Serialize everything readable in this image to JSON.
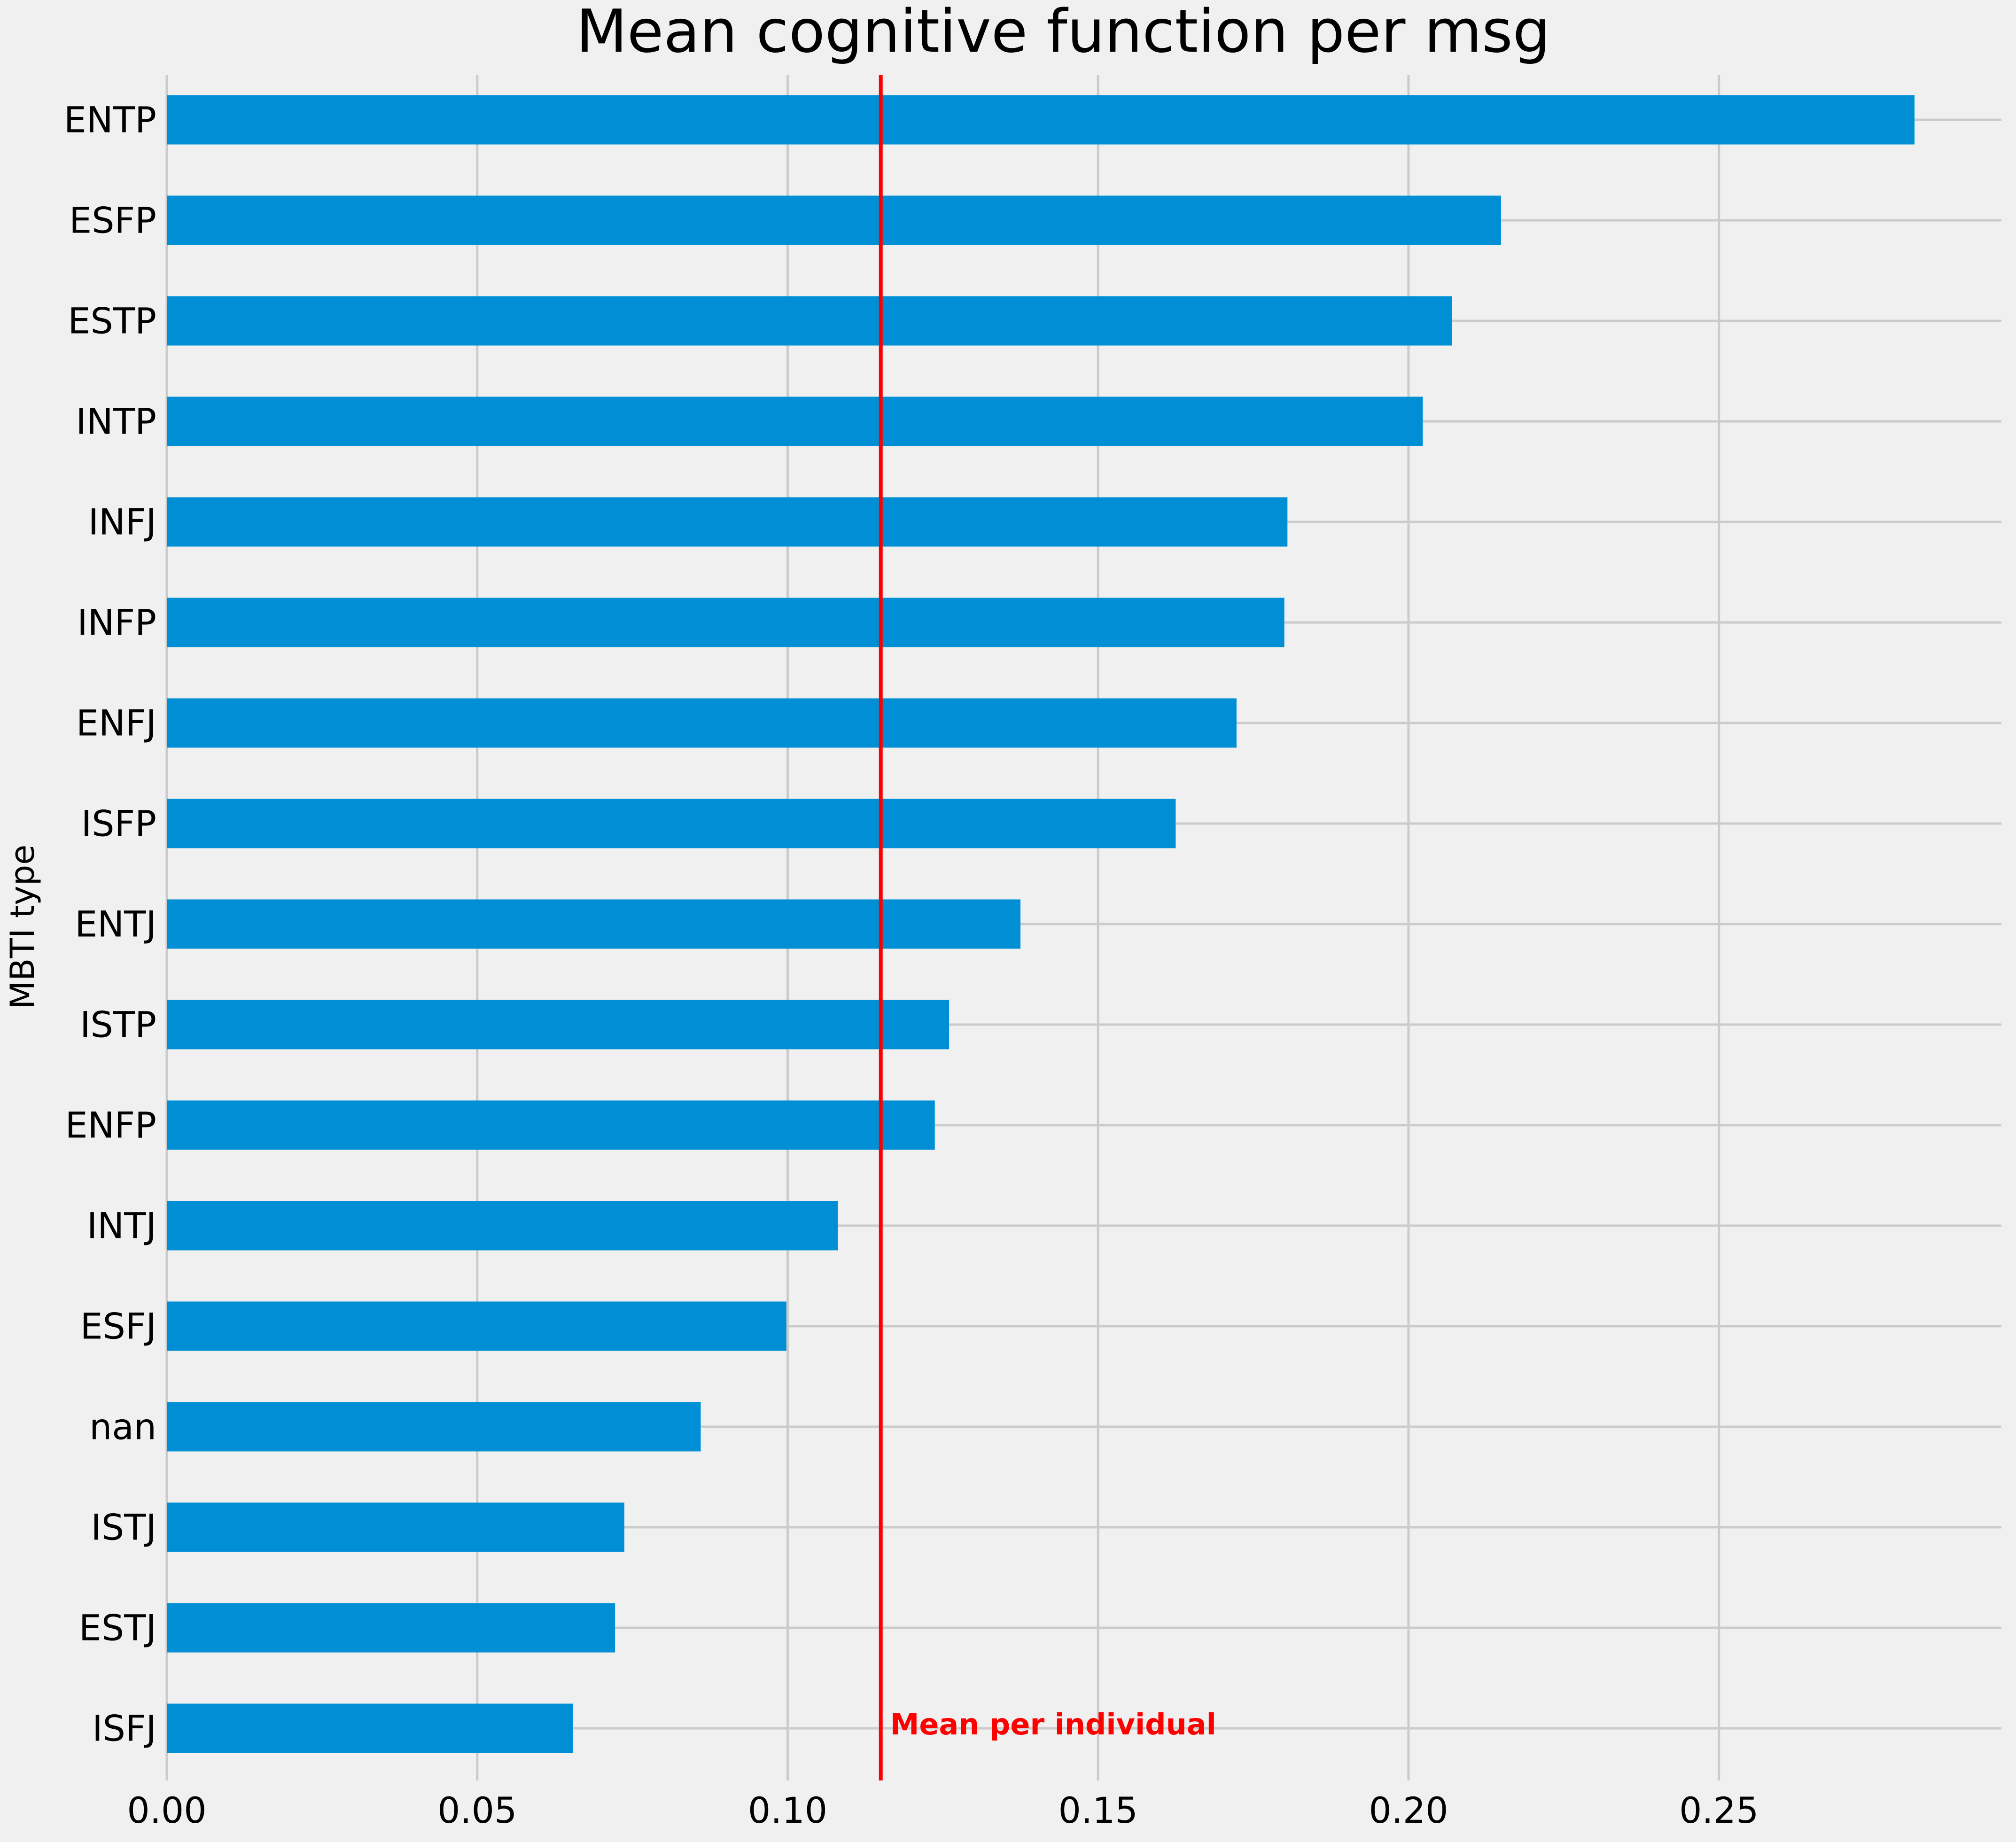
{
  "chart_data": {
    "type": "bar",
    "orientation": "horizontal",
    "title": "Mean cognitive function per msg",
    "xlabel": "",
    "ylabel": "MBTI type",
    "categories": [
      "ENTP",
      "ESFP",
      "ESTP",
      "INTP",
      "INFJ",
      "INFP",
      "ENFJ",
      "ISFP",
      "ENTJ",
      "ISTP",
      "ENFP",
      "INTJ",
      "ESFJ",
      "nan",
      "ISTJ",
      "ESTJ",
      "ISFJ"
    ],
    "values": [
      0.2815,
      0.2149,
      0.207,
      0.2023,
      0.1805,
      0.18,
      0.1723,
      0.1625,
      0.1375,
      0.126,
      0.1237,
      0.1081,
      0.0998,
      0.086,
      0.0737,
      0.0722,
      0.0654
    ],
    "xlim": [
      0.0,
      0.2955
    ],
    "xticks": [
      0.0,
      0.05,
      0.1,
      0.15,
      0.2,
      0.25
    ],
    "xtick_labels": [
      "0.00",
      "0.05",
      "0.10",
      "0.15",
      "0.20",
      "0.25"
    ],
    "reference_line": {
      "value": 0.115,
      "label": "Mean per individual",
      "color": "#ff0000"
    },
    "colors": {
      "bar": "#008fd5",
      "background": "#f0f0f0",
      "grid": "#cbcbcb",
      "text": "#000000"
    },
    "grid": true,
    "style": "fivethirtyeight"
  }
}
